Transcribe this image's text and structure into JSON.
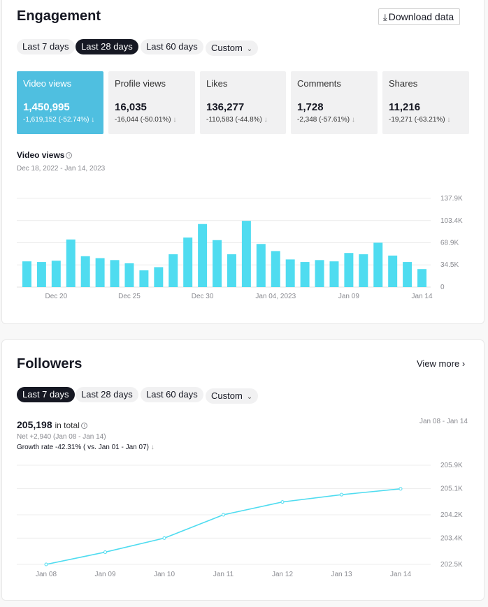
{
  "engagement": {
    "title": "Engagement",
    "download_label": "Download data",
    "ranges": [
      "Last 7 days",
      "Last 28 days",
      "Last 60 days"
    ],
    "custom_label": "Custom",
    "metrics": [
      {
        "label": "Video views",
        "value": "1,450,995",
        "delta": "-1,619,152 (-52.74%)"
      },
      {
        "label": "Profile views",
        "value": "16,035",
        "delta": "-16,044 (-50.01%)"
      },
      {
        "label": "Likes",
        "value": "136,277",
        "delta": "-110,583 (-44.8%)"
      },
      {
        "label": "Comments",
        "value": "1,728",
        "delta": "-2,348 (-57.61%)"
      },
      {
        "label": "Shares",
        "value": "11,216",
        "delta": "-19,271 (-63.21%)"
      }
    ],
    "chart_title": "Video views",
    "chart_range": "Dec 18, 2022 - Jan 14, 2023"
  },
  "followers": {
    "title": "Followers",
    "view_more_label": "View more",
    "ranges": [
      "Last 7 days",
      "Last 28 days",
      "Last 60 days"
    ],
    "custom_label": "Custom",
    "total": "205,198",
    "total_suffix": "in total",
    "net": "Net +2,940 (Jan 08 - Jan 14)",
    "growth": "Growth rate -42.31% ( vs. Jan 01 - Jan 07)",
    "date_range": "Jan 08 - Jan 14"
  },
  "colors": {
    "accent": "#4fdcf0",
    "active_card": "#4fbfe0",
    "dark": "#161823"
  },
  "chart_data": [
    {
      "type": "bar",
      "title": "Video views",
      "categories": [
        "Dec 18",
        "Dec 19",
        "Dec 20",
        "Dec 21",
        "Dec 22",
        "Dec 23",
        "Dec 24",
        "Dec 25",
        "Dec 26",
        "Dec 27",
        "Dec 28",
        "Dec 29",
        "Dec 30",
        "Dec 31",
        "Jan 01",
        "Jan 02",
        "Jan 03",
        "Jan 04, 2023",
        "Jan 05",
        "Jan 06",
        "Jan 07",
        "Jan 08",
        "Jan 09",
        "Jan 10",
        "Jan 11",
        "Jan 12",
        "Jan 13",
        "Jan 14"
      ],
      "values": [
        40000,
        39000,
        41000,
        74000,
        48000,
        45000,
        42000,
        37000,
        26000,
        31000,
        51000,
        77000,
        98000,
        73000,
        51000,
        103000,
        67000,
        56000,
        43000,
        39000,
        42000,
        40000,
        53000,
        51000,
        69000,
        49000,
        39000,
        28000
      ],
      "x_tick_labels": [
        "Dec 20",
        "Dec 25",
        "Dec 30",
        "Jan 04, 2023",
        "Jan 09",
        "Jan 14"
      ],
      "x_tick_index": [
        2,
        7,
        12,
        17,
        22,
        27
      ],
      "y_ticks": [
        0,
        34500,
        68900,
        103400,
        137900
      ],
      "y_tick_labels": [
        "0",
        "34.5K",
        "68.9K",
        "103.4K",
        "137.9K"
      ],
      "ylim": [
        0,
        137900
      ],
      "grid": true
    },
    {
      "type": "line",
      "categories": [
        "Jan 08",
        "Jan 09",
        "Jan 10",
        "Jan 11",
        "Jan 12",
        "Jan 13",
        "Jan 14"
      ],
      "values": [
        202500,
        202920,
        203400,
        204200,
        204640,
        204890,
        205090
      ],
      "y_ticks": [
        202500,
        203400,
        204200,
        205100,
        205900
      ],
      "y_tick_labels": [
        "202.5K",
        "203.4K",
        "204.2K",
        "205.1K",
        "205.9K"
      ],
      "ylim": [
        202500,
        205900
      ],
      "grid": true
    }
  ]
}
